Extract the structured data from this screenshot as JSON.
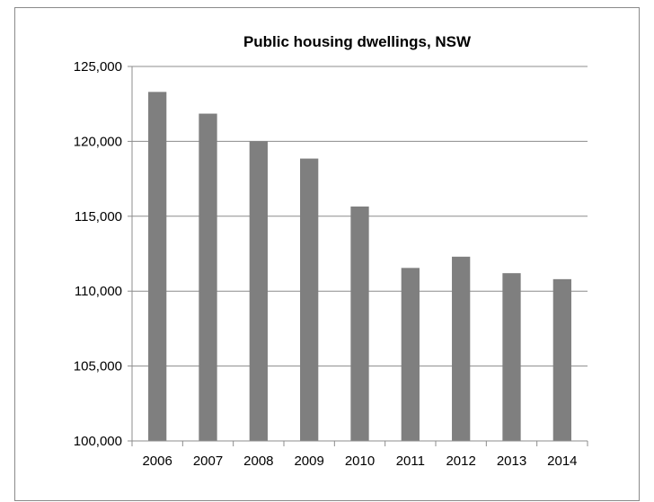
{
  "chart_data": {
    "type": "bar",
    "title": "Public housing dwellings, NSW",
    "xlabel": "",
    "ylabel": "",
    "categories": [
      "2006",
      "2007",
      "2008",
      "2009",
      "2010",
      "2011",
      "2012",
      "2013",
      "2014"
    ],
    "values": [
      123300,
      121850,
      120000,
      118850,
      115650,
      111550,
      112300,
      111200,
      110800
    ],
    "ylim": [
      100000,
      125000
    ],
    "yticks": [
      100000,
      105000,
      110000,
      115000,
      120000,
      125000
    ],
    "ytick_labels": [
      "100,000",
      "105,000",
      "110,000",
      "115,000",
      "120,000",
      "125,000"
    ],
    "grid": true,
    "legend": "none",
    "colors": {
      "bar": "#7f7f7f",
      "grid": "#8c8c8c",
      "axis": "#8c8c8c",
      "frame": "#8a8a8a"
    }
  }
}
